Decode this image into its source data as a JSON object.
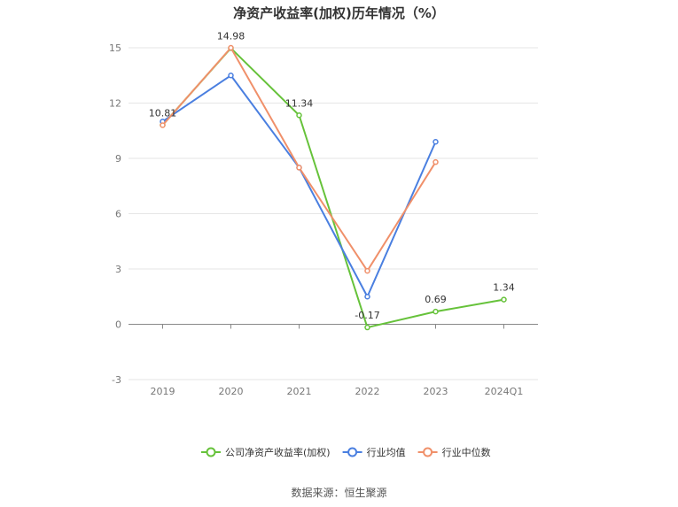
{
  "chart_data": {
    "type": "line",
    "title": "净资产收益率(加权)历年情况（%）",
    "categories": [
      "2019",
      "2020",
      "2021",
      "2022",
      "2023",
      "2024Q1"
    ],
    "y_ticks": [
      "15",
      "12",
      "9",
      "6",
      "3",
      "0",
      "-3"
    ],
    "ylim": [
      -3,
      15
    ],
    "grid": true,
    "legend_position": "bottom-center",
    "series": [
      {
        "name": "公司净资产收益率(加权)",
        "color": "#66c23a",
        "values": [
          10.81,
          14.98,
          11.34,
          -0.17,
          0.69,
          1.34
        ],
        "labels": [
          "10.81",
          "14.98",
          "11.34",
          "-0.17",
          "0.69",
          "1.34"
        ]
      },
      {
        "name": "行业均值",
        "color": "#4a7fe0",
        "values": [
          11.0,
          13.5,
          8.5,
          1.5,
          9.9,
          null
        ]
      },
      {
        "name": "行业中位数",
        "color": "#f0906a",
        "values": [
          10.8,
          15.0,
          8.5,
          2.9,
          8.8,
          null
        ]
      }
    ]
  },
  "source": "数据来源：恒生聚源"
}
